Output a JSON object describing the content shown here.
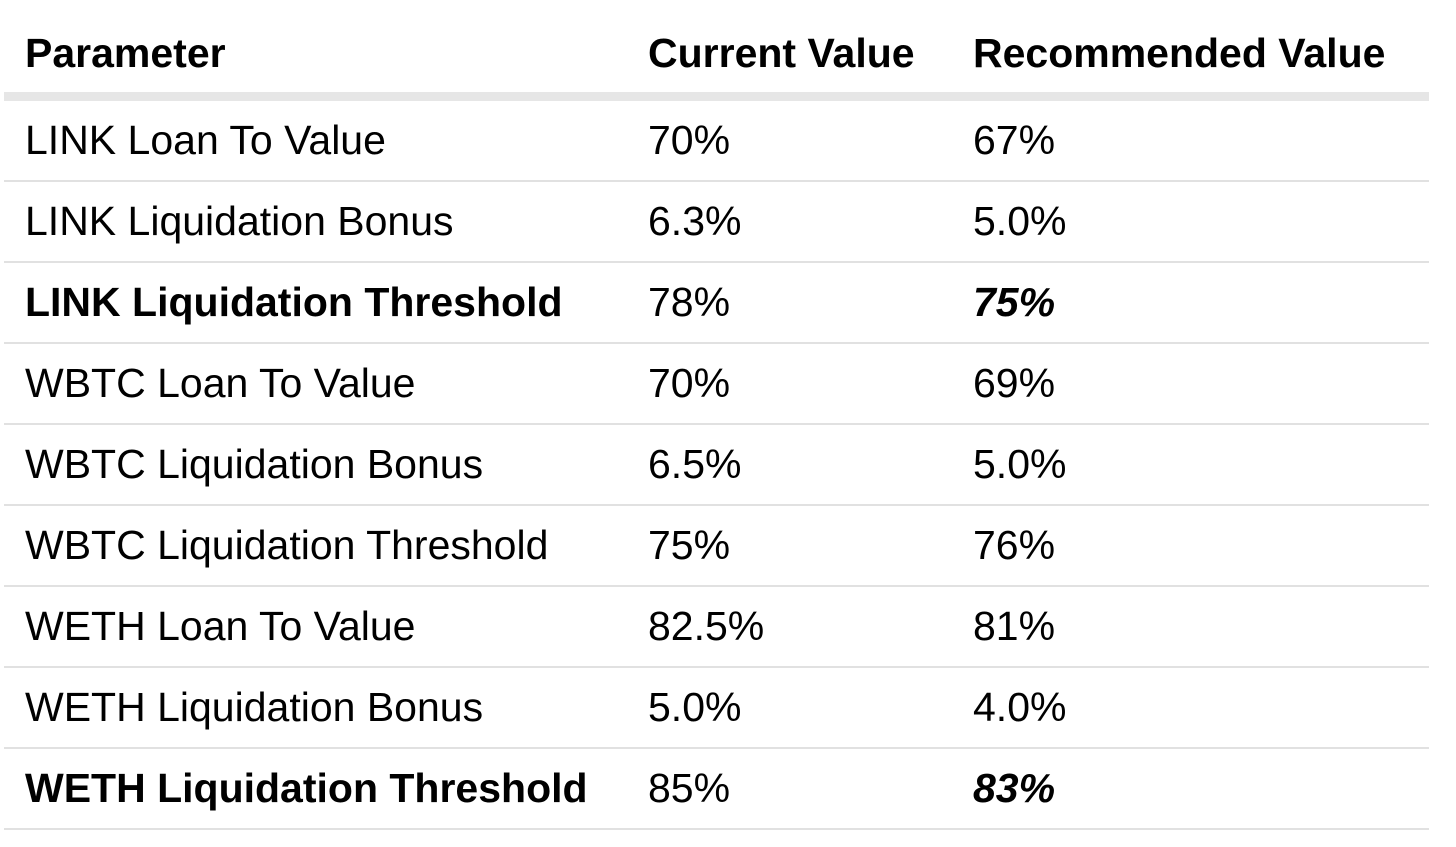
{
  "table": {
    "headers": [
      "Parameter",
      "Current Value",
      "Recommended Value"
    ],
    "rows": [
      {
        "parameter": "LINK Loan To Value",
        "current": "70%",
        "recommended": "67%",
        "emphasized": false
      },
      {
        "parameter": "LINK Liquidation Bonus",
        "current": "6.3%",
        "recommended": "5.0%",
        "emphasized": false
      },
      {
        "parameter": "LINK Liquidation Threshold",
        "current": "78%",
        "recommended": "75%",
        "emphasized": true
      },
      {
        "parameter": "WBTC Loan To Value",
        "current": "70%",
        "recommended": "69%",
        "emphasized": false
      },
      {
        "parameter": "WBTC Liquidation Bonus",
        "current": "6.5%",
        "recommended": "5.0%",
        "emphasized": false
      },
      {
        "parameter": "WBTC Liquidation Threshold",
        "current": "75%",
        "recommended": "76%",
        "emphasized": false
      },
      {
        "parameter": "WETH Loan To Value",
        "current": "82.5%",
        "recommended": "81%",
        "emphasized": false
      },
      {
        "parameter": "WETH Liquidation Bonus",
        "current": "5.0%",
        "recommended": "4.0%",
        "emphasized": false
      },
      {
        "parameter": "WETH Liquidation Threshold",
        "current": "85%",
        "recommended": "83%",
        "emphasized": true
      }
    ]
  }
}
